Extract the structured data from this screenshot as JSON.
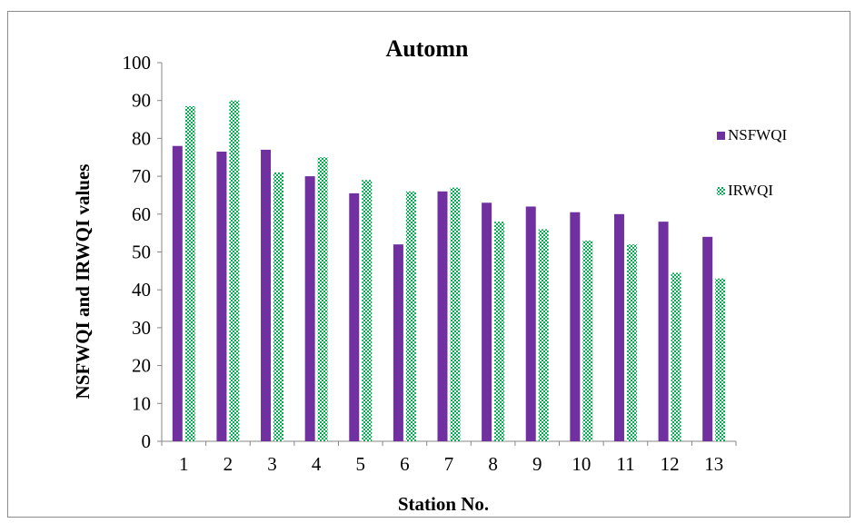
{
  "chart_data": {
    "type": "bar",
    "title": "Automn",
    "xlabel": "Station No.",
    "ylabel": "NSFWQI and IRWQI values",
    "ylim": [
      0,
      100
    ],
    "yticks": [
      0,
      10,
      20,
      30,
      40,
      50,
      60,
      70,
      80,
      90,
      100
    ],
    "grid": false,
    "legend_position": "right",
    "categories": [
      "1",
      "2",
      "3",
      "4",
      "5",
      "6",
      "7",
      "8",
      "9",
      "10",
      "11",
      "12",
      "13"
    ],
    "series": [
      {
        "name": "NSFWQI",
        "color": "#7030a0",
        "pattern": "solid",
        "values": [
          78,
          76.5,
          77,
          70,
          65.5,
          52,
          66,
          63,
          62,
          60.5,
          60,
          58,
          54
        ]
      },
      {
        "name": "IRWQI",
        "color": "#00b050",
        "pattern": "checkered",
        "values": [
          88.5,
          90,
          71,
          75,
          69,
          66,
          67,
          58,
          56,
          53,
          52,
          44.5,
          43
        ]
      }
    ]
  }
}
